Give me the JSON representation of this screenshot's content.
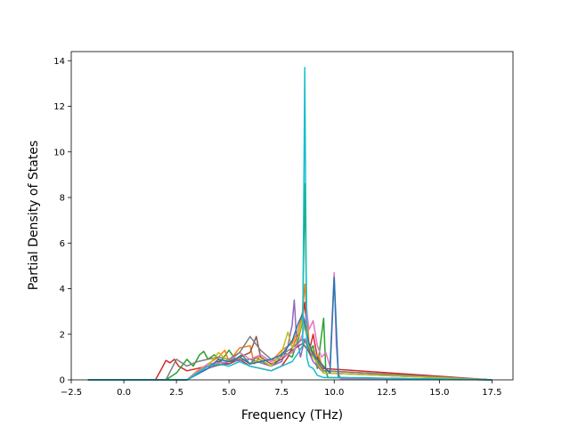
{
  "chart_data": {
    "type": "line",
    "title": "",
    "xlabel": "Frequency (THz)",
    "ylabel": "Partial Density of States",
    "xlim": [
      -2.5,
      18.5
    ],
    "ylim": [
      0,
      14.4
    ],
    "xticks": [
      -2.5,
      0.0,
      2.5,
      5.0,
      7.5,
      10.0,
      12.5,
      15.0,
      17.5
    ],
    "xtick_labels": [
      "−2.5",
      "0.0",
      "2.5",
      "5.0",
      "7.5",
      "10.0",
      "12.5",
      "15.0",
      "17.5"
    ],
    "yticks": [
      0,
      2,
      4,
      6,
      8,
      10,
      12,
      14
    ],
    "ytick_labels": [
      "0",
      "2",
      "4",
      "6",
      "8",
      "10",
      "12",
      "14"
    ],
    "grid": false,
    "legend": "none",
    "colors": [
      "#1f77b4",
      "#ff7f0e",
      "#2ca02c",
      "#d62728",
      "#9467bd",
      "#8c564b",
      "#e377c2",
      "#7f7f7f",
      "#bcbd22",
      "#17becf"
    ],
    "series": [
      {
        "color": "#d62728",
        "x": [
          -1.7,
          1.5,
          1.8,
          2.0,
          2.2,
          2.4,
          2.6,
          3.0,
          3.5,
          4.0,
          4.5,
          5.0,
          5.5,
          6.0,
          6.5,
          7.0,
          7.5,
          7.8,
          8.0,
          8.2,
          8.4,
          8.6,
          8.7,
          8.8,
          9.0,
          9.2,
          9.5,
          17.5
        ],
        "y": [
          0,
          0,
          0.5,
          0.85,
          0.75,
          0.9,
          0.6,
          0.4,
          0.5,
          0.6,
          0.8,
          0.7,
          0.9,
          0.6,
          0.5,
          0.4,
          0.6,
          1.0,
          1.4,
          1.8,
          2.2,
          3.4,
          2.2,
          1.2,
          2.0,
          1.0,
          0.5,
          0
        ]
      },
      {
        "color": "#2ca02c",
        "x": [
          -1.7,
          2.0,
          2.5,
          3.0,
          3.3,
          3.6,
          3.8,
          4.0,
          4.3,
          4.6,
          5.0,
          5.3,
          5.6,
          6.0,
          6.3,
          6.6,
          7.0,
          7.3,
          7.6,
          8.0,
          8.3,
          8.5,
          8.6,
          8.7,
          8.8,
          9.0,
          9.2,
          9.5,
          9.6,
          9.7,
          17.5
        ],
        "y": [
          0,
          0,
          0.3,
          0.9,
          0.6,
          1.1,
          1.25,
          0.9,
          1.1,
          0.8,
          1.3,
          0.9,
          1.1,
          0.7,
          1.0,
          0.8,
          0.6,
          0.8,
          1.2,
          1.0,
          1.8,
          2.6,
          8.6,
          2.6,
          1.2,
          1.5,
          0.5,
          2.7,
          0.4,
          0.1,
          0
        ]
      },
      {
        "color": "#ff7f0e",
        "x": [
          -1.7,
          3.0,
          3.5,
          4.0,
          4.5,
          4.8,
          5.0,
          5.5,
          6.0,
          6.2,
          6.5,
          7.0,
          7.5,
          8.0,
          8.3,
          8.5,
          8.6,
          8.7,
          8.8,
          9.0,
          9.3,
          9.5,
          17.5
        ],
        "y": [
          0,
          0,
          0.4,
          0.7,
          1.0,
          1.3,
          0.8,
          1.4,
          1.5,
          0.7,
          1.1,
          0.8,
          1.3,
          1.6,
          2.2,
          3.0,
          4.2,
          3.0,
          1.6,
          1.2,
          1.0,
          0.3,
          0
        ]
      },
      {
        "color": "#9467bd",
        "x": [
          -1.7,
          3.0,
          4.0,
          5.0,
          6.0,
          7.0,
          7.5,
          7.8,
          8.0,
          8.1,
          8.2,
          8.4,
          8.6,
          8.8,
          9.0,
          9.5,
          17.5
        ],
        "y": [
          0,
          0,
          0.5,
          0.8,
          0.9,
          0.6,
          0.8,
          1.5,
          2.4,
          3.5,
          2.0,
          1.0,
          1.8,
          1.2,
          0.8,
          0.3,
          0
        ]
      },
      {
        "color": "#8c564b",
        "x": [
          -1.7,
          3.0,
          4.0,
          5.0,
          5.5,
          6.0,
          6.3,
          6.5,
          7.0,
          7.5,
          8.0,
          8.5,
          9.0,
          9.5,
          17.5
        ],
        "y": [
          0,
          0,
          0.6,
          0.7,
          1.0,
          1.2,
          1.9,
          1.0,
          0.7,
          0.9,
          1.3,
          1.6,
          1.0,
          0.4,
          0
        ]
      },
      {
        "color": "#e377c2",
        "x": [
          -1.7,
          3.0,
          4.0,
          5.0,
          5.5,
          6.0,
          6.5,
          7.0,
          7.5,
          8.0,
          8.3,
          8.5,
          8.7,
          8.8,
          9.0,
          9.2,
          9.4,
          9.6,
          9.8,
          10.0,
          10.1,
          10.2,
          10.3,
          17.5
        ],
        "y": [
          0,
          0,
          0.7,
          0.8,
          1.2,
          0.9,
          1.1,
          0.8,
          1.0,
          1.2,
          1.6,
          2.0,
          3.0,
          2.2,
          2.6,
          1.5,
          1.0,
          1.2,
          0.6,
          4.7,
          1.5,
          0.3,
          0.05,
          0
        ]
      },
      {
        "color": "#7f7f7f",
        "x": [
          -1.7,
          2.0,
          2.5,
          3.0,
          3.5,
          4.0,
          4.5,
          5.0,
          5.5,
          6.0,
          6.5,
          7.0,
          7.5,
          8.0,
          8.5,
          9.0,
          9.5,
          17.5
        ],
        "y": [
          0,
          0,
          0.9,
          0.6,
          0.8,
          0.9,
          1.0,
          0.9,
          1.2,
          1.9,
          1.3,
          0.9,
          1.1,
          1.4,
          1.8,
          1.2,
          0.4,
          0
        ]
      },
      {
        "color": "#bcbd22",
        "x": [
          -1.7,
          3.0,
          4.0,
          4.5,
          5.0,
          5.5,
          6.0,
          6.5,
          7.0,
          7.5,
          7.8,
          8.0,
          8.3,
          8.5,
          8.8,
          9.0,
          9.5,
          17.5
        ],
        "y": [
          0,
          0,
          0.6,
          1.2,
          0.8,
          1.0,
          0.7,
          0.9,
          0.6,
          1.2,
          2.1,
          1.4,
          1.9,
          2.7,
          1.5,
          1.0,
          0.3,
          0
        ]
      },
      {
        "color": "#1f77b4",
        "x": [
          -1.7,
          3.0,
          4.0,
          4.5,
          5.0,
          5.5,
          6.0,
          6.5,
          7.0,
          7.5,
          8.0,
          8.3,
          8.5,
          8.8,
          9.0,
          9.3,
          9.6,
          9.8,
          10.0,
          10.2,
          17.5
        ],
        "y": [
          0,
          0,
          0.5,
          0.9,
          0.8,
          1.0,
          0.7,
          0.8,
          0.9,
          1.1,
          1.7,
          2.5,
          2.9,
          1.6,
          1.1,
          0.8,
          0.5,
          0.3,
          4.5,
          0.1,
          0
        ]
      },
      {
        "color": "#17becf",
        "x": [
          -1.7,
          3.0,
          4.0,
          4.5,
          5.0,
          5.5,
          6.0,
          6.5,
          7.0,
          7.5,
          8.0,
          8.3,
          8.5,
          8.6,
          8.7,
          8.8,
          9.0,
          9.2,
          9.5,
          17.5
        ],
        "y": [
          0,
          0,
          0.6,
          0.7,
          0.6,
          0.8,
          0.6,
          0.5,
          0.4,
          0.6,
          0.8,
          1.2,
          1.5,
          13.7,
          1.0,
          0.6,
          0.5,
          0.2,
          0.1,
          0
        ]
      }
    ]
  }
}
